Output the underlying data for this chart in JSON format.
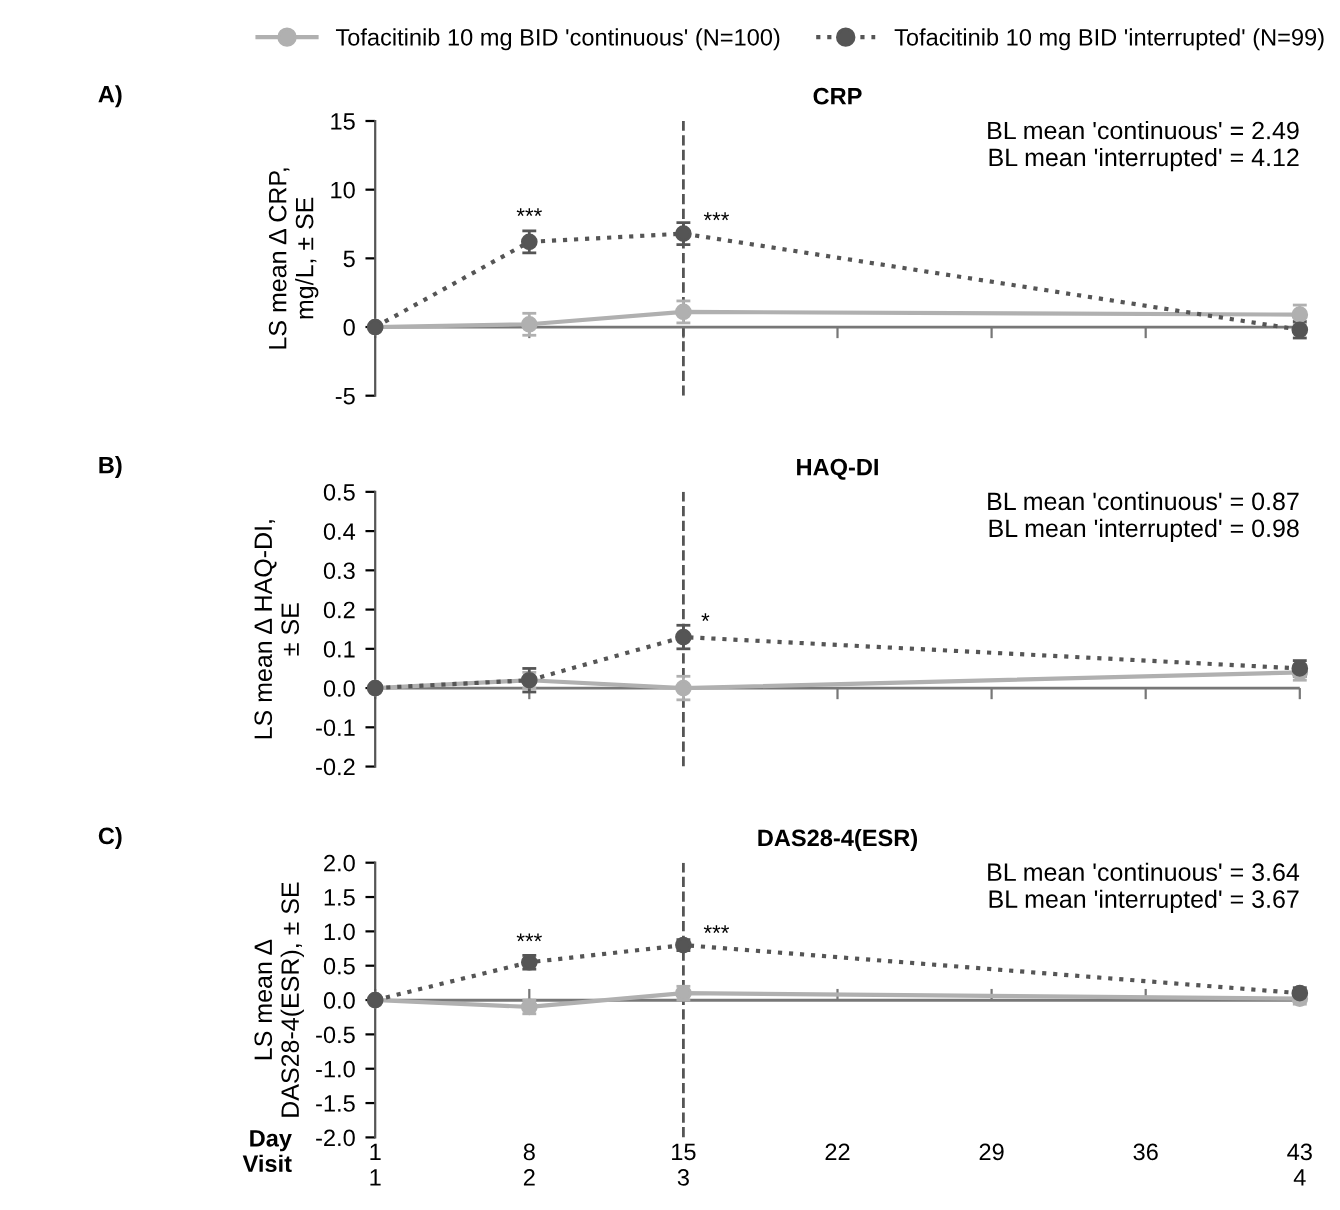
{
  "chart_data": [
    {
      "type": "line",
      "title": "CRP",
      "ylabel": "LS mean Δ CRP,\nmg/L, ± SE",
      "legend": "top",
      "marker": "circle",
      "grid": false,
      "tick_labels": "y",
      "annotations": [
        "A)",
        "BL mean 'continuous' = 2.49\nBL mean 'interrupted' = 4.12",
        {
          "text": "***",
          "x": 8,
          "y": 7.2
        },
        {
          "text": "***",
          "x": 16.5,
          "y": 6.9
        }
      ],
      "xlim": [
        1,
        43
      ],
      "xticks": [
        1,
        8,
        15,
        22,
        29,
        36,
        43
      ],
      "ylim": [
        -5,
        15
      ],
      "yticks": [
        -5,
        0,
        5,
        10,
        15
      ],
      "ref_lines": [
        {
          "axis": "x",
          "value": 15,
          "line_style": "dashed",
          "color": "#555555"
        },
        {
          "axis": "y",
          "value": 0,
          "line_style": "solid",
          "color": "#777777"
        }
      ],
      "x": [
        1,
        8,
        15,
        43
      ],
      "series": [
        {
          "name": "Tofacitinib 10 mg BID 'continuous' (N=100)",
          "color": "#b0b0b0",
          "line_style": "solid",
          "values": [
            0,
            0.2,
            1.1,
            0.9
          ],
          "errors": [
            0,
            0.8,
            0.8,
            0.7
          ]
        },
        {
          "name": "Tofacitinib 10 mg BID 'interrupted' (N=99)",
          "color": "#555555",
          "line_style": "dotted",
          "values": [
            0,
            6.2,
            6.8,
            -0.2
          ],
          "errors": [
            0,
            0.8,
            0.8,
            0.6
          ]
        }
      ]
    },
    {
      "type": "line",
      "title": "HAQ-DI",
      "ylabel": "LS mean Δ HAQ-DI,\n± SE",
      "marker": "circle",
      "grid": false,
      "tick_labels": "y",
      "annotations": [
        "B)",
        "BL mean 'continuous' = 0.87\nBL mean 'interrupted' = 0.98",
        {
          "text": "*",
          "x": 16,
          "y": 0.14
        }
      ],
      "xlim": [
        1,
        43
      ],
      "xticks": [
        1,
        8,
        15,
        22,
        29,
        36,
        43
      ],
      "ylim": [
        -0.2,
        0.5
      ],
      "yticks": [
        {
          "value": -0.2,
          "label": "-0.2"
        },
        {
          "value": -0.1,
          "label": "-0.1"
        },
        {
          "value": 0,
          "label": "0.0"
        },
        0.1,
        0.2,
        0.3,
        0.4,
        0.5
      ],
      "ref_lines": [
        {
          "axis": "x",
          "value": 15,
          "line_style": "dashed",
          "color": "#555555"
        },
        {
          "axis": "y",
          "value": 0,
          "line_style": "solid",
          "color": "#777777"
        }
      ],
      "x": [
        1,
        8,
        15,
        43
      ],
      "series": [
        {
          "color": "#b0b0b0",
          "line_style": "solid",
          "values": [
            0,
            0.02,
            0.0,
            0.04
          ],
          "errors": [
            0,
            0.02,
            0.03,
            0.02
          ]
        },
        {
          "color": "#555555",
          "line_style": "dotted",
          "values": [
            0,
            0.02,
            0.13,
            0.05
          ],
          "errors": [
            0,
            0.03,
            0.03,
            0.02
          ]
        }
      ]
    },
    {
      "type": "line",
      "title": "DAS28-4(ESR)",
      "ylabel": "LS mean Δ\nDAS28-4(ESR), ± SE",
      "xlabel": "Day\nVisit",
      "marker": "circle",
      "grid": false,
      "annotations": [
        "C)",
        "BL mean 'continuous' = 3.64\nBL mean 'interrupted' = 3.67",
        {
          "text": "***",
          "x": 8,
          "y": 0.68
        },
        {
          "text": "***",
          "x": 16.5,
          "y": 0.8
        }
      ],
      "xlim": [
        1,
        43
      ],
      "xticks": [
        {
          "value": 1,
          "label": "1\n1"
        },
        {
          "value": 8,
          "label": "8\n2"
        },
        {
          "value": 15,
          "label": "15\n3"
        },
        22,
        29,
        36,
        {
          "value": 43,
          "label": "43\n4"
        }
      ],
      "ylim": [
        -2,
        2
      ],
      "yticks": [
        {
          "value": -2,
          "label": "-2.0"
        },
        {
          "value": -1.5,
          "label": "-1.5"
        },
        {
          "value": -1,
          "label": "-1.0"
        },
        {
          "value": -0.5,
          "label": "-0.5"
        },
        {
          "value": 0,
          "label": "0.0"
        },
        0.5,
        {
          "value": 1,
          "label": "1.0"
        },
        1.5,
        {
          "value": 2,
          "label": "2.0"
        }
      ],
      "ref_lines": [
        {
          "axis": "x",
          "value": 15,
          "line_style": "dashed",
          "color": "#555555"
        },
        {
          "axis": "y",
          "value": 0,
          "line_style": "solid",
          "color": "#777777"
        }
      ],
      "x": [
        1,
        8,
        15,
        43
      ],
      "series": [
        {
          "color": "#b0b0b0",
          "line_style": "solid",
          "values": [
            0,
            -0.1,
            0.1,
            0.02
          ],
          "errors": [
            0,
            0.1,
            0.1,
            0.08
          ]
        },
        {
          "color": "#555555",
          "line_style": "dotted",
          "values": [
            0,
            0.55,
            0.8,
            0.1
          ],
          "errors": [
            0,
            0.1,
            0.08,
            0.08
          ]
        }
      ]
    }
  ]
}
